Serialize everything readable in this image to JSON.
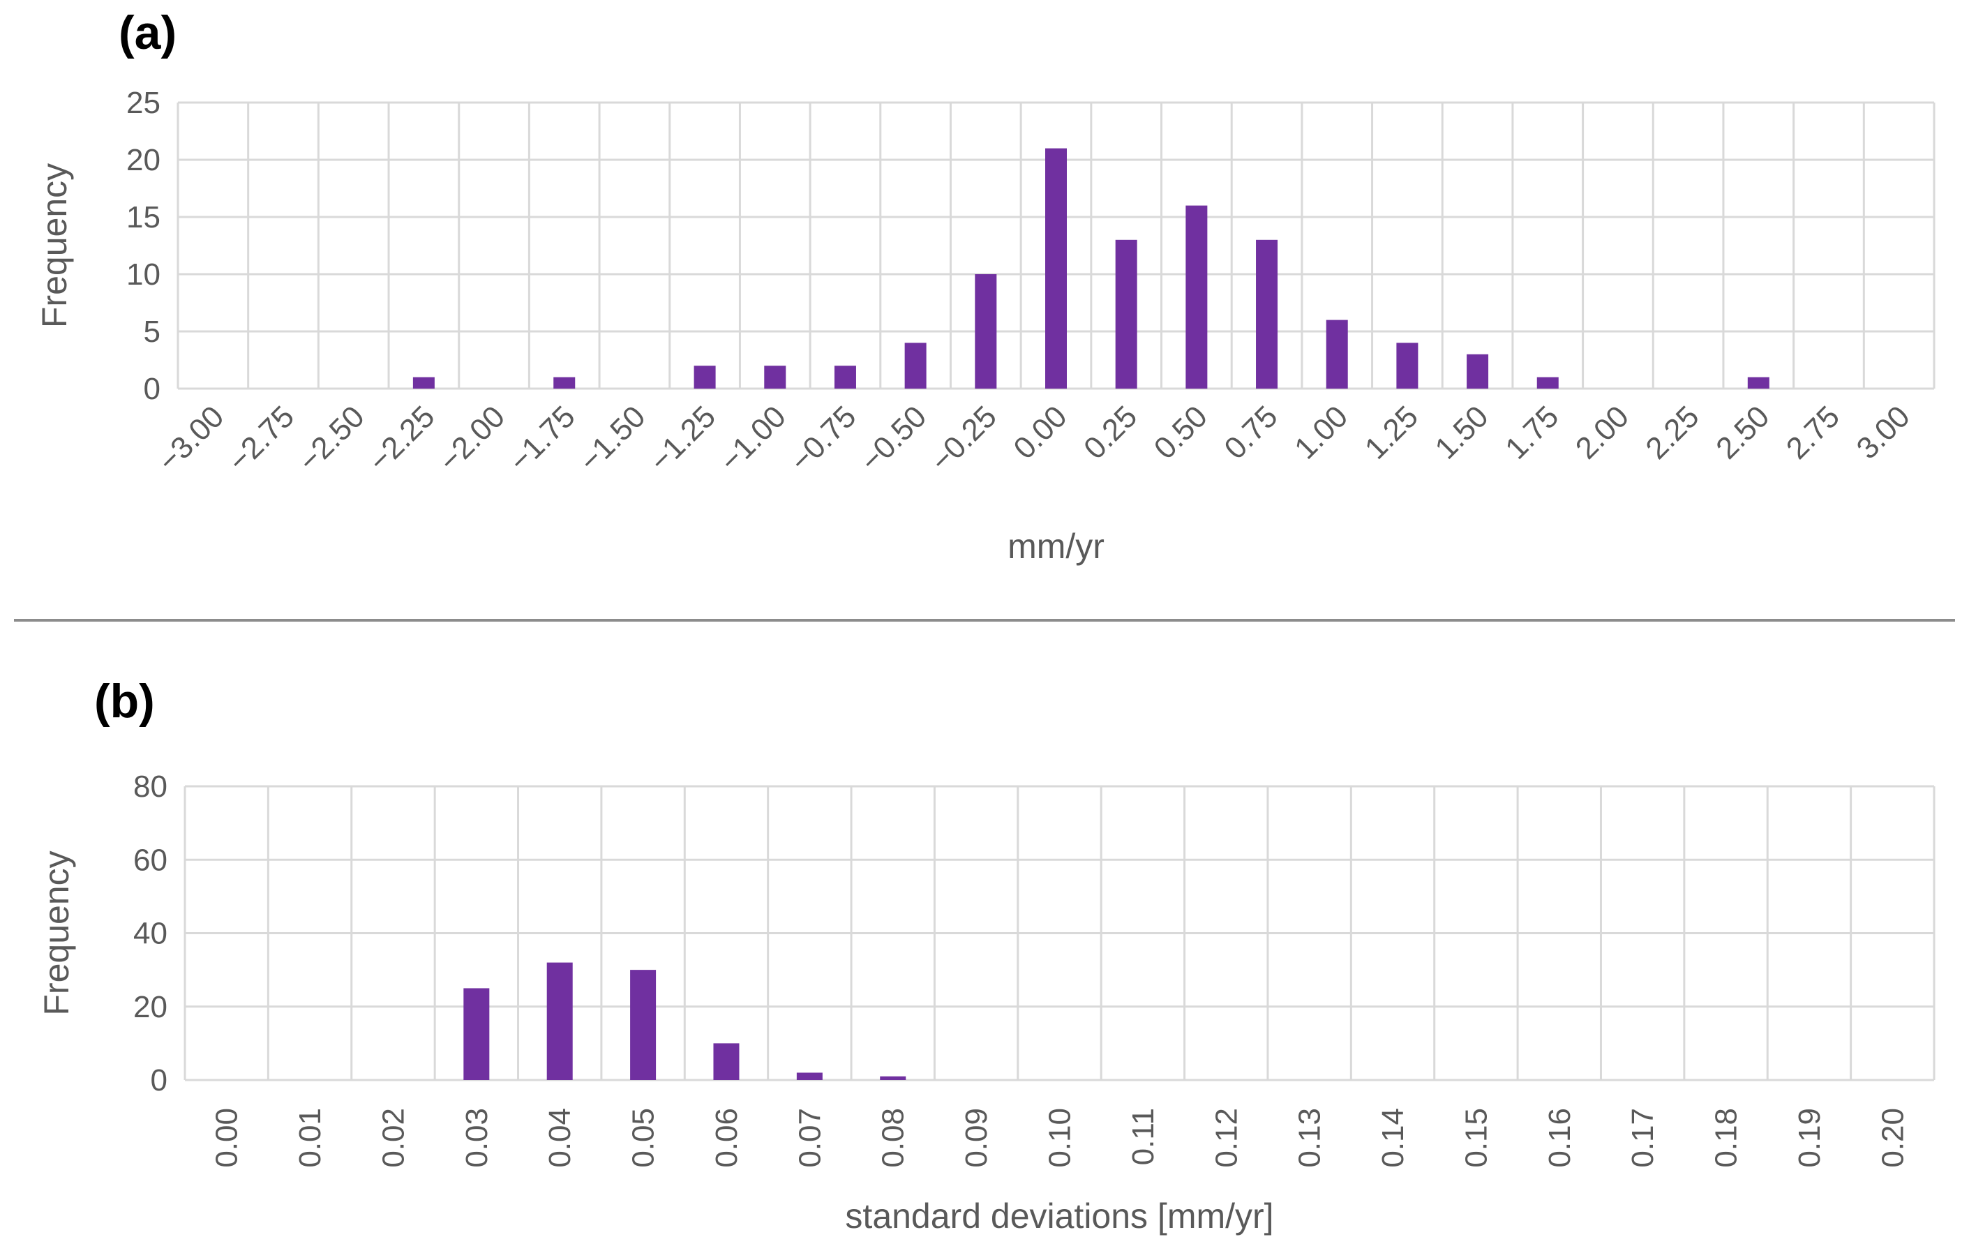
{
  "chart_data": [
    {
      "panel_label": "(a)",
      "type": "bar",
      "categories": [
        "−3.00",
        "−2.75",
        "−2.50",
        "−2.25",
        "−2.00",
        "−1.75",
        "−1.50",
        "−1.25",
        "−1.00",
        "−0.75",
        "−0.50",
        "−0.25",
        "0.00",
        "0.25",
        "0.50",
        "0.75",
        "1.00",
        "1.25",
        "1.50",
        "1.75",
        "2.00",
        "2.25",
        "2.50",
        "2.75",
        "3.00"
      ],
      "values": [
        0,
        0,
        0,
        1,
        0,
        1,
        0,
        2,
        2,
        2,
        4,
        10,
        21,
        13,
        16,
        13,
        6,
        4,
        3,
        1,
        0,
        0,
        1,
        0,
        0
      ],
      "xlabel": "mm/yr",
      "ylabel": "Frequency",
      "ylim": [
        0,
        25
      ],
      "yticks": [
        0,
        5,
        10,
        15,
        20,
        25
      ],
      "grid": true,
      "bar_color": "#7030a0",
      "tick_rotation": "diagonal"
    },
    {
      "panel_label": "(b)",
      "type": "bar",
      "categories": [
        "0.00",
        "0.01",
        "0.02",
        "0.03",
        "0.04",
        "0.05",
        "0.06",
        "0.07",
        "0.08",
        "0.09",
        "0.10",
        "0.11",
        "0.12",
        "0.13",
        "0.14",
        "0.15",
        "0.16",
        "0.17",
        "0.18",
        "0.19",
        "0.20"
      ],
      "values": [
        0,
        0,
        0,
        25,
        32,
        30,
        10,
        2,
        1,
        0,
        0,
        0,
        0,
        0,
        0,
        0,
        0,
        0,
        0,
        0,
        0
      ],
      "xlabel": "standard deviations [mm/yr]",
      "ylabel": "Frequency",
      "ylim": [
        0,
        80
      ],
      "yticks": [
        0,
        20,
        40,
        60,
        80
      ],
      "grid": true,
      "bar_color": "#7030a0",
      "tick_rotation": "vertical"
    }
  ]
}
